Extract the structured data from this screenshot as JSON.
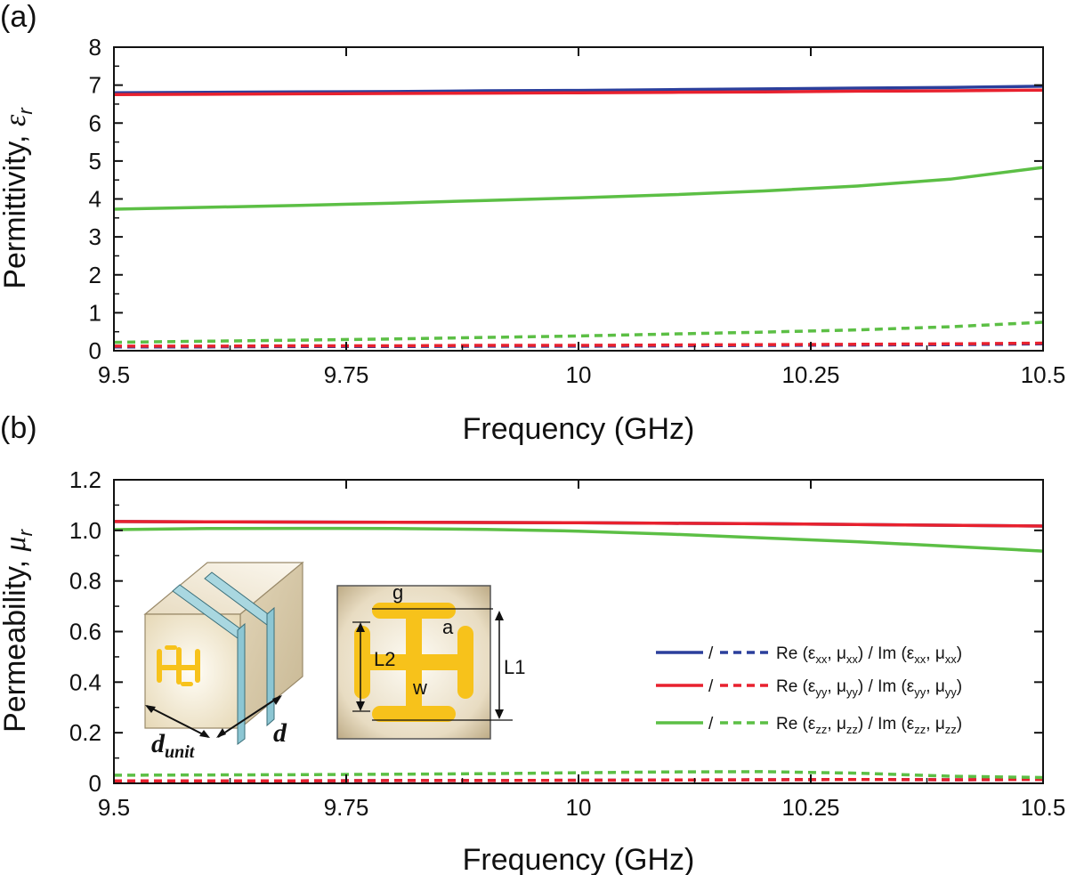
{
  "panel_a_label": "(a)",
  "panel_b_label": "(b)",
  "inset": {
    "cube_labels": [
      "d",
      "unit",
      "d"
    ],
    "cell_labels": [
      "g",
      "a",
      "L2",
      "w",
      "L1"
    ]
  },
  "legend": [
    {
      "sep": "/",
      "pre": "Re (",
      "sym1": "ε",
      "sub1": "xx",
      "sym2": "μ",
      "sub2": "xx",
      "mid": ") / Im (",
      "sym3": "ε",
      "sub3": "xx",
      "sym4": "μ",
      "sub4": "xx",
      "post": ")",
      "color": "#2b3f9c"
    },
    {
      "sep": "/",
      "pre": "Re (",
      "sym1": "ε",
      "sub1": "yy",
      "sym2": "μ",
      "sub2": "yy",
      "mid": ") / Im (",
      "sym3": "ε",
      "sub3": "yy",
      "sym4": "μ",
      "sub4": "yy",
      "post": ")",
      "color": "#e8212e"
    },
    {
      "sep": "/",
      "pre": "Re (",
      "sym1": "ε",
      "sub1": "zz",
      "sym2": "μ",
      "sub2": "zz",
      "mid": ") / Im (",
      "sym3": "ε",
      "sub3": "zz",
      "sym4": "μ",
      "sub4": "zz",
      "post": ")",
      "color": "#5cbf45"
    }
  ],
  "chart_data": [
    {
      "type": "line",
      "xlabel": "Frequency (GHz)",
      "ylabel": "Permittivity, ",
      "ylabel_symbol": "ε",
      "ylabel_sub": "r",
      "xlim": [
        9.5,
        10.5
      ],
      "ylim": [
        0,
        8
      ],
      "xticks": [
        "9.5",
        "9.75",
        "10",
        "10.25",
        "10.5"
      ],
      "xtick_values": [
        9.5,
        9.75,
        10,
        10.25,
        10.5
      ],
      "yticks": [
        "0",
        "1",
        "2",
        "3",
        "4",
        "5",
        "6",
        "7",
        "8"
      ],
      "ytick_values": [
        0,
        1,
        2,
        3,
        4,
        5,
        6,
        7,
        8
      ],
      "x": [
        9.5,
        9.6,
        9.7,
        9.8,
        9.9,
        10.0,
        10.1,
        10.2,
        10.3,
        10.4,
        10.5
      ],
      "series": [
        {
          "part": "Re",
          "component": "xx",
          "color": "#2b3f9c",
          "dash": false,
          "values": [
            6.8,
            6.81,
            6.82,
            6.83,
            6.85,
            6.86,
            6.88,
            6.9,
            6.92,
            6.94,
            6.97
          ]
        },
        {
          "part": "Re",
          "component": "yy",
          "color": "#e8212e",
          "dash": false,
          "values": [
            6.75,
            6.76,
            6.77,
            6.78,
            6.79,
            6.8,
            6.81,
            6.82,
            6.84,
            6.85,
            6.87
          ]
        },
        {
          "part": "Re",
          "component": "zz",
          "color": "#5cbf45",
          "dash": false,
          "values": [
            3.73,
            3.78,
            3.83,
            3.89,
            3.96,
            4.03,
            4.11,
            4.21,
            4.34,
            4.52,
            4.83
          ]
        },
        {
          "part": "Im",
          "component": "xx",
          "color": "#2b3f9c",
          "dash": true,
          "values": [
            0.1,
            0.1,
            0.11,
            0.11,
            0.12,
            0.12,
            0.13,
            0.14,
            0.15,
            0.16,
            0.18
          ]
        },
        {
          "part": "Im",
          "component": "yy",
          "color": "#e8212e",
          "dash": true,
          "values": [
            0.12,
            0.12,
            0.13,
            0.13,
            0.14,
            0.14,
            0.15,
            0.16,
            0.17,
            0.18,
            0.2
          ]
        },
        {
          "part": "Im",
          "component": "zz",
          "color": "#5cbf45",
          "dash": true,
          "values": [
            0.22,
            0.25,
            0.28,
            0.31,
            0.35,
            0.39,
            0.44,
            0.49,
            0.55,
            0.63,
            0.75
          ]
        }
      ]
    },
    {
      "type": "line",
      "xlabel": "Frequency (GHz)",
      "ylabel": "Permeability, ",
      "ylabel_symbol": "μ",
      "ylabel_sub": "r",
      "xlim": [
        9.5,
        10.5
      ],
      "ylim": [
        0,
        1.2
      ],
      "xticks": [
        "9.5",
        "9.75",
        "10",
        "10.25",
        "10.5"
      ],
      "xtick_values": [
        9.5,
        9.75,
        10,
        10.25,
        10.5
      ],
      "yticks": [
        "0",
        "0.2",
        "0.4",
        "0.6",
        "0.8",
        "1.0",
        "1.2"
      ],
      "ytick_values": [
        0,
        0.2,
        0.4,
        0.6,
        0.8,
        1.0,
        1.2
      ],
      "x": [
        9.5,
        9.6,
        9.7,
        9.8,
        9.9,
        10.0,
        10.1,
        10.2,
        10.3,
        10.4,
        10.5
      ],
      "series": [
        {
          "part": "Re",
          "component": "xx",
          "color": "#2b3f9c",
          "dash": false,
          "values": [
            1.035,
            1.034,
            1.033,
            1.032,
            1.031,
            1.03,
            1.028,
            1.026,
            1.023,
            1.02,
            1.017
          ]
        },
        {
          "part": "Re",
          "component": "yy",
          "color": "#e8212e",
          "dash": false,
          "values": [
            1.035,
            1.034,
            1.033,
            1.032,
            1.031,
            1.03,
            1.028,
            1.026,
            1.023,
            1.02,
            1.017
          ]
        },
        {
          "part": "Re",
          "component": "zz",
          "color": "#5cbf45",
          "dash": false,
          "values": [
            1.003,
            1.007,
            1.008,
            1.007,
            1.004,
            0.997,
            0.985,
            0.97,
            0.955,
            0.937,
            0.918
          ]
        },
        {
          "part": "Im",
          "component": "xx",
          "color": "#2b3f9c",
          "dash": true,
          "values": [
            0.01,
            0.01,
            0.01,
            0.011,
            0.011,
            0.012,
            0.013,
            0.014,
            0.015,
            0.014,
            0.015
          ]
        },
        {
          "part": "Im",
          "component": "yy",
          "color": "#e8212e",
          "dash": true,
          "values": [
            0.01,
            0.01,
            0.01,
            0.011,
            0.011,
            0.012,
            0.013,
            0.014,
            0.015,
            0.014,
            0.015
          ]
        },
        {
          "part": "Im",
          "component": "zz",
          "color": "#5cbf45",
          "dash": true,
          "values": [
            0.032,
            0.033,
            0.034,
            0.036,
            0.038,
            0.042,
            0.045,
            0.046,
            0.04,
            0.028,
            0.023
          ]
        }
      ]
    }
  ]
}
